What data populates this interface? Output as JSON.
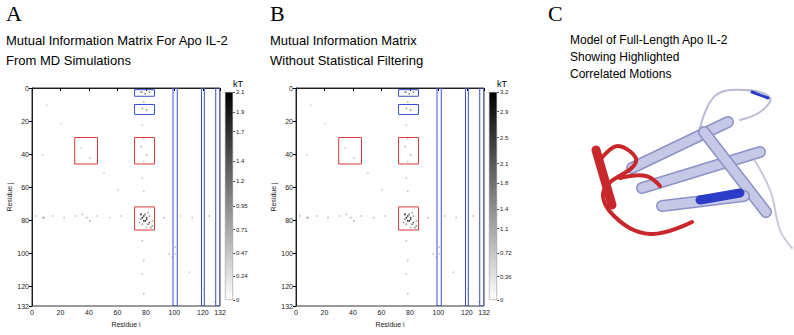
{
  "chart_data": [
    {
      "type": "heatmap",
      "panel": "A",
      "title": [
        "Mutual Information Matrix For Apo IL-2",
        "From MD Simulations"
      ],
      "x_label": "Residue i",
      "y_label": "Residue j",
      "xlim": [
        0,
        132
      ],
      "ylim": [
        132,
        0
      ],
      "xticks": [
        0,
        20,
        40,
        60,
        80,
        100,
        120,
        132
      ],
      "yticks": [
        0,
        20,
        40,
        60,
        80,
        100,
        120,
        132
      ],
      "cells": [
        [
          76,
          76,
          2.1
        ],
        [
          77,
          78,
          1.9
        ],
        [
          78,
          77,
          1.9
        ],
        [
          79,
          80,
          1.7
        ],
        [
          80,
          79,
          1.7
        ],
        [
          78,
          80,
          1.5
        ],
        [
          80,
          78,
          1.5
        ],
        [
          81,
          82,
          1.4
        ],
        [
          82,
          81,
          1.4
        ],
        [
          76,
          79,
          1.2
        ],
        [
          79,
          76,
          1.2
        ],
        [
          83,
          84,
          1.0
        ],
        [
          84,
          83,
          1.0
        ],
        [
          77,
          82,
          0.9
        ],
        [
          82,
          77,
          0.9
        ],
        [
          75,
          81,
          0.8
        ],
        [
          81,
          75,
          0.8
        ],
        [
          80,
          84,
          0.7
        ],
        [
          84,
          80,
          0.7
        ],
        [
          2,
          77,
          0.6
        ],
        [
          8,
          78,
          0.7
        ],
        [
          14,
          77,
          0.5
        ],
        [
          22,
          78,
          0.6
        ],
        [
          30,
          77,
          0.5
        ],
        [
          38,
          78,
          0.6
        ],
        [
          45,
          77,
          0.5
        ],
        [
          54,
          78,
          0.5
        ],
        [
          62,
          77,
          0.5
        ],
        [
          92,
          78,
          0.6
        ],
        [
          104,
          77,
          0.5
        ],
        [
          112,
          78,
          0.5
        ],
        [
          124,
          77,
          0.6
        ],
        [
          77,
          2,
          0.6
        ],
        [
          78,
          8,
          0.7
        ],
        [
          77,
          22,
          0.5
        ],
        [
          78,
          30,
          0.5
        ],
        [
          77,
          54,
          0.5
        ],
        [
          78,
          62,
          0.5
        ],
        [
          77,
          92,
          0.6
        ],
        [
          78,
          104,
          0.5
        ],
        [
          77,
          112,
          0.5
        ],
        [
          78,
          124,
          0.6
        ],
        [
          76,
          2,
          1.0
        ],
        [
          79,
          3,
          1.2
        ],
        [
          82,
          2,
          0.9
        ],
        [
          77,
          12,
          0.8
        ],
        [
          80,
          13,
          0.9
        ],
        [
          34,
          36,
          0.4
        ],
        [
          40,
          42,
          0.5
        ],
        [
          76,
          35,
          0.6
        ],
        [
          80,
          40,
          0.7
        ],
        [
          78,
          44,
          0.5
        ],
        [
          35,
          76,
          0.6
        ],
        [
          40,
          80,
          0.7
        ],
        [
          10,
          10,
          0.4
        ],
        [
          20,
          21,
          0.4
        ],
        [
          50,
          51,
          0.4
        ],
        [
          60,
          61,
          0.4
        ],
        [
          100,
          100,
          0.5
        ],
        [
          110,
          111,
          0.4
        ],
        [
          120,
          121,
          0.4
        ],
        [
          128,
          129,
          0.4
        ],
        [
          96,
          100,
          0.6
        ],
        [
          100,
          96,
          0.6
        ],
        [
          98,
          102,
          0.5
        ],
        [
          7,
          40,
          0.4
        ],
        [
          7,
          78,
          0.7
        ]
      ],
      "colorbar": {
        "label": "kT",
        "range": [
          0,
          2.1
        ],
        "ticks": [
          0,
          0.24,
          0.47,
          0.71,
          0.95,
          1.2,
          1.4,
          1.7,
          1.9,
          2.1
        ],
        "colors": [
          "#ffffff",
          "#000000"
        ]
      },
      "regions": [
        {
          "x": [
            72,
            86
          ],
          "y": [
            1,
            5
          ],
          "color": "#3a4fd0"
        },
        {
          "x": [
            72,
            86
          ],
          "y": [
            10,
            16
          ],
          "color": "#3a4fd0"
        },
        {
          "x": [
            99,
            102
          ],
          "y": [
            0,
            132
          ],
          "color": "#3a4fd0"
        },
        {
          "x": [
            119,
            121
          ],
          "y": [
            0,
            132
          ],
          "color": "#3a4fd0"
        },
        {
          "x": [
            129,
            132
          ],
          "y": [
            0,
            132
          ],
          "color": "#3a4fd0"
        },
        {
          "x": [
            30,
            46
          ],
          "y": [
            30,
            46
          ],
          "color": "#d9383c"
        },
        {
          "x": [
            72,
            86
          ],
          "y": [
            30,
            46
          ],
          "color": "#d9383c"
        },
        {
          "x": [
            72,
            86
          ],
          "y": [
            72,
            86
          ],
          "color": "#d9383c"
        }
      ]
    },
    {
      "type": "heatmap",
      "panel": "B",
      "title": [
        "Mutual Information Matrix",
        "Without Statistical Filtering"
      ],
      "x_label": "Residue i",
      "y_label": "Residue j",
      "xlim": [
        0,
        132
      ],
      "ylim": [
        132,
        0
      ],
      "xticks": [
        0,
        20,
        40,
        60,
        80,
        100,
        120,
        132
      ],
      "yticks": [
        0,
        20,
        40,
        60,
        80,
        100,
        120,
        132
      ],
      "cells": [
        [
          76,
          76,
          3.2
        ],
        [
          77,
          78,
          2.9
        ],
        [
          78,
          77,
          2.9
        ],
        [
          79,
          80,
          2.6
        ],
        [
          80,
          79,
          2.6
        ],
        [
          78,
          80,
          2.3
        ],
        [
          80,
          78,
          2.3
        ],
        [
          81,
          82,
          2.1
        ],
        [
          82,
          81,
          2.1
        ],
        [
          76,
          79,
          1.9
        ],
        [
          79,
          76,
          1.9
        ],
        [
          83,
          84,
          1.6
        ],
        [
          84,
          83,
          1.6
        ],
        [
          77,
          82,
          1.4
        ],
        [
          82,
          77,
          1.4
        ],
        [
          75,
          81,
          1.3
        ],
        [
          81,
          75,
          1.3
        ],
        [
          80,
          84,
          1.1
        ],
        [
          84,
          80,
          1.1
        ],
        [
          2,
          77,
          1.0
        ],
        [
          8,
          78,
          1.1
        ],
        [
          14,
          77,
          0.9
        ],
        [
          22,
          78,
          1.0
        ],
        [
          30,
          77,
          0.8
        ],
        [
          38,
          78,
          0.9
        ],
        [
          45,
          77,
          0.8
        ],
        [
          54,
          78,
          0.8
        ],
        [
          62,
          77,
          0.8
        ],
        [
          92,
          78,
          0.9
        ],
        [
          104,
          77,
          0.8
        ],
        [
          112,
          78,
          0.8
        ],
        [
          124,
          77,
          0.9
        ],
        [
          77,
          2,
          1.0
        ],
        [
          78,
          8,
          1.1
        ],
        [
          77,
          22,
          0.8
        ],
        [
          78,
          30,
          0.8
        ],
        [
          77,
          54,
          0.8
        ],
        [
          78,
          62,
          0.8
        ],
        [
          77,
          92,
          0.9
        ],
        [
          78,
          104,
          0.8
        ],
        [
          77,
          112,
          0.8
        ],
        [
          78,
          124,
          0.9
        ],
        [
          76,
          2,
          1.5
        ],
        [
          79,
          3,
          1.8
        ],
        [
          82,
          2,
          1.4
        ],
        [
          77,
          12,
          1.2
        ],
        [
          80,
          13,
          1.4
        ],
        [
          34,
          36,
          0.7
        ],
        [
          40,
          42,
          0.8
        ],
        [
          76,
          35,
          0.9
        ],
        [
          80,
          40,
          1.1
        ],
        [
          78,
          44,
          0.8
        ],
        [
          35,
          76,
          0.9
        ],
        [
          40,
          80,
          1.1
        ],
        [
          10,
          10,
          0.7
        ],
        [
          20,
          21,
          0.7
        ],
        [
          50,
          51,
          0.7
        ],
        [
          60,
          61,
          0.7
        ],
        [
          100,
          100,
          0.8
        ],
        [
          110,
          111,
          0.7
        ],
        [
          120,
          121,
          0.7
        ],
        [
          128,
          129,
          0.7
        ],
        [
          96,
          100,
          0.9
        ],
        [
          100,
          96,
          0.9
        ],
        [
          98,
          102,
          0.8
        ],
        [
          7,
          40,
          0.7
        ],
        [
          7,
          78,
          1.1
        ]
      ],
      "colorbar": {
        "label": "kT",
        "range": [
          0,
          3.2
        ],
        "ticks": [
          0,
          0.36,
          0.72,
          1.1,
          1.4,
          1.8,
          2.1,
          2.5,
          2.9,
          3.2
        ],
        "colors": [
          "#ffffff",
          "#000000"
        ]
      },
      "regions": [
        {
          "x": [
            72,
            86
          ],
          "y": [
            1,
            5
          ],
          "color": "#3a4fd0"
        },
        {
          "x": [
            72,
            86
          ],
          "y": [
            10,
            16
          ],
          "color": "#3a4fd0"
        },
        {
          "x": [
            99,
            102
          ],
          "y": [
            0,
            132
          ],
          "color": "#3a4fd0"
        },
        {
          "x": [
            119,
            121
          ],
          "y": [
            0,
            132
          ],
          "color": "#3a4fd0"
        },
        {
          "x": [
            129,
            132
          ],
          "y": [
            0,
            132
          ],
          "color": "#3a4fd0"
        },
        {
          "x": [
            30,
            46
          ],
          "y": [
            30,
            46
          ],
          "color": "#d9383c"
        },
        {
          "x": [
            72,
            86
          ],
          "y": [
            30,
            46
          ],
          "color": "#d9383c"
        },
        {
          "x": [
            72,
            86
          ],
          "y": [
            72,
            86
          ],
          "color": "#d9383c"
        }
      ]
    }
  ],
  "figure_panels": [
    {
      "panel": "C",
      "title": [
        "Model of Full-Length Apo IL-2",
        "Showing Highlighted",
        "Correlated Motions"
      ]
    }
  ]
}
